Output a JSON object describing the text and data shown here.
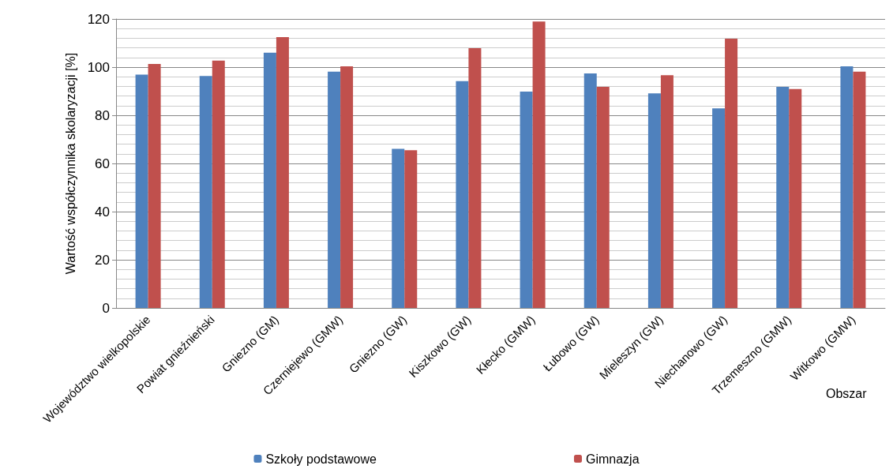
{
  "chart_data": {
    "type": "bar",
    "ylabel": "Wartość współczynnika skolaryzacji [%]",
    "xlabel": "Obszar",
    "categories": [
      "Województwo wielkopolskie",
      "Powiat gnieźnieński",
      "Gniezno (GM)",
      "Czerniejewo (GMW)",
      "Gniezno (GW)",
      "Kiszkowo (GW)",
      "Kłecko (GMW)",
      "Łubowo (GW)",
      "Mieleszyn (GW)",
      "Niechanowo (GW)",
      "Trzemeszno (GMW)",
      "Witkowo (GMW)"
    ],
    "series": [
      {
        "name": "Szkoły podstawowe",
        "color": "#4f81bd",
        "values": [
          96.9,
          96.3,
          106.0,
          98.1,
          66.1,
          94.2,
          89.8,
          97.4,
          89.1,
          82.9,
          91.8,
          100.3
        ]
      },
      {
        "name": "Gimnazja",
        "color": "#c0504d",
        "values": [
          101.3,
          102.7,
          112.5,
          100.3,
          65.5,
          107.9,
          118.9,
          91.8,
          96.6,
          111.8,
          90.9,
          98.1
        ]
      }
    ],
    "ylim": [
      0,
      120
    ],
    "yticks": [
      0,
      20,
      40,
      60,
      80,
      100,
      120
    ],
    "grid": "y",
    "legend": "bottom"
  }
}
